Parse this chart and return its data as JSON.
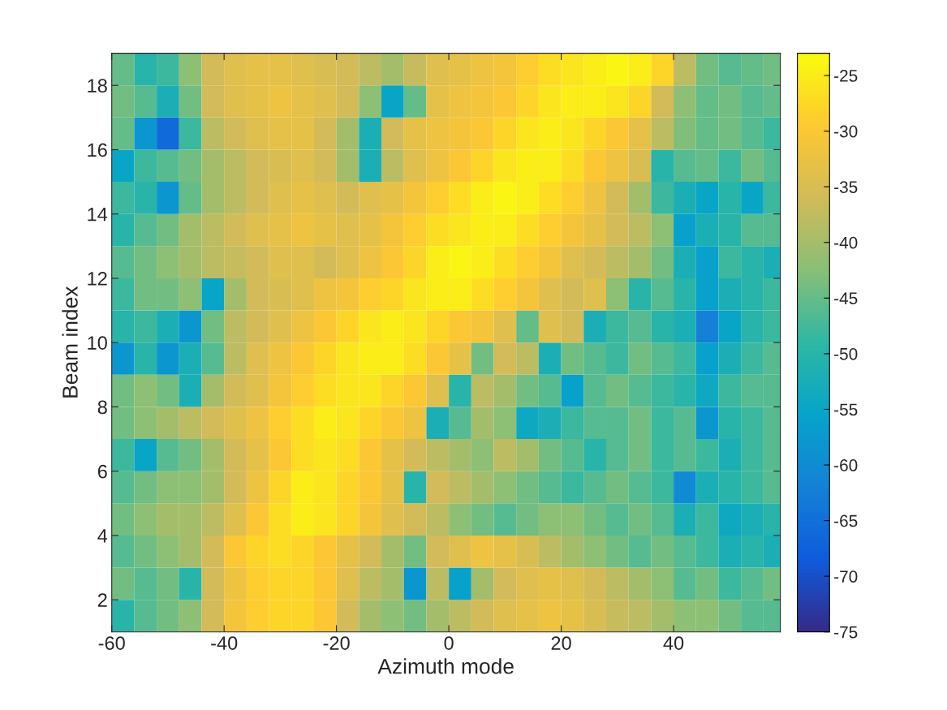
{
  "chart_data": {
    "type": "heatmap",
    "xlabel": "Azimuth mode",
    "ylabel": "Beam index",
    "x": [
      -58,
      -54,
      -50,
      -46,
      -42,
      -38,
      -34,
      -30,
      -26,
      -22,
      -18,
      -14,
      -10,
      -6,
      -2,
      2,
      6,
      10,
      14,
      18,
      22,
      26,
      30,
      34,
      38,
      42,
      46,
      50,
      54,
      58
    ],
    "xlim": [
      -60,
      59
    ],
    "xticks": [
      -60,
      -40,
      -20,
      0,
      20,
      40
    ],
    "ylim": [
      1,
      19
    ],
    "yticks": [
      2,
      4,
      6,
      8,
      10,
      12,
      14,
      16,
      18
    ],
    "clim": [
      -75,
      -23
    ],
    "cticks": [
      -75,
      -70,
      -65,
      -60,
      -55,
      -50,
      -45,
      -40,
      -35,
      -30,
      -25
    ],
    "cells": [
      [
        -45,
        -50,
        -48,
        -42,
        -36,
        -34,
        -33,
        -33,
        -34,
        -35,
        -36,
        -38,
        -40,
        -37,
        -34,
        -33,
        -32,
        -31,
        -29,
        -27,
        -26,
        -25,
        -24,
        -25,
        -28,
        -38,
        -44,
        -46,
        -45,
        -44
      ],
      [
        -44,
        -46,
        -52,
        -44,
        -36,
        -34,
        -33,
        -32,
        -33,
        -34,
        -36,
        -42,
        -55,
        -45,
        -33,
        -32,
        -31,
        -30,
        -28,
        -26,
        -25,
        -25,
        -26,
        -28,
        -36,
        -42,
        -45,
        -44,
        -46,
        -45
      ],
      [
        -45,
        -58,
        -66,
        -48,
        -38,
        -36,
        -34,
        -33,
        -33,
        -36,
        -40,
        -52,
        -36,
        -33,
        -32,
        -31,
        -30,
        -28,
        -26,
        -25,
        -26,
        -28,
        -30,
        -33,
        -38,
        -43,
        -45,
        -44,
        -46,
        -48
      ],
      [
        -55,
        -48,
        -46,
        -44,
        -40,
        -38,
        -36,
        -35,
        -34,
        -36,
        -40,
        -52,
        -38,
        -34,
        -32,
        -30,
        -28,
        -26,
        -25,
        -25,
        -27,
        -30,
        -32,
        -35,
        -50,
        -46,
        -45,
        -48,
        -44,
        -46
      ],
      [
        -48,
        -50,
        -58,
        -45,
        -40,
        -38,
        -36,
        -34,
        -33,
        -34,
        -36,
        -34,
        -33,
        -31,
        -29,
        -27,
        -25,
        -24,
        -25,
        -27,
        -29,
        -32,
        -36,
        -40,
        -48,
        -52,
        -55,
        -50,
        -55,
        -48
      ],
      [
        -50,
        -46,
        -44,
        -40,
        -38,
        -36,
        -34,
        -33,
        -32,
        -33,
        -34,
        -33,
        -31,
        -29,
        -27,
        -26,
        -25,
        -25,
        -27,
        -29,
        -31,
        -33,
        -36,
        -38,
        -42,
        -56,
        -52,
        -50,
        -46,
        -46
      ],
      [
        -46,
        -44,
        -42,
        -40,
        -38,
        -37,
        -36,
        -34,
        -34,
        -36,
        -34,
        -32,
        -30,
        -28,
        -25,
        -24,
        -25,
        -27,
        -29,
        -31,
        -34,
        -36,
        -38,
        -40,
        -44,
        -52,
        -56,
        -48,
        -50,
        -52
      ],
      [
        -48,
        -44,
        -44,
        -42,
        -55,
        -40,
        -36,
        -35,
        -34,
        -32,
        -31,
        -29,
        -28,
        -26,
        -25,
        -25,
        -27,
        -29,
        -31,
        -34,
        -36,
        -34,
        -42,
        -50,
        -46,
        -50,
        -56,
        -52,
        -50,
        -48
      ],
      [
        -50,
        -48,
        -52,
        -58,
        -44,
        -38,
        -36,
        -34,
        -32,
        -30,
        -28,
        -26,
        -25,
        -26,
        -28,
        -30,
        -31,
        -34,
        -45,
        -34,
        -36,
        -52,
        -48,
        -46,
        -50,
        -52,
        -62,
        -55,
        -50,
        -48
      ],
      [
        -58,
        -50,
        -58,
        -52,
        -46,
        -38,
        -34,
        -32,
        -30,
        -28,
        -26,
        -25,
        -25,
        -27,
        -30,
        -33,
        -44,
        -36,
        -38,
        -52,
        -44,
        -46,
        -48,
        -44,
        -46,
        -48,
        -56,
        -52,
        -48,
        -46
      ],
      [
        -44,
        -42,
        -44,
        -52,
        -40,
        -36,
        -34,
        -31,
        -29,
        -27,
        -26,
        -26,
        -28,
        -30,
        -34,
        -50,
        -38,
        -40,
        -44,
        -46,
        -56,
        -46,
        -44,
        -46,
        -48,
        -50,
        -54,
        -48,
        -46,
        -46
      ],
      [
        -44,
        -42,
        -40,
        -38,
        -36,
        -34,
        -32,
        -29,
        -27,
        -25,
        -26,
        -28,
        -30,
        -32,
        -52,
        -46,
        -40,
        -42,
        -54,
        -52,
        -48,
        -46,
        -46,
        -44,
        -48,
        -46,
        -58,
        -50,
        -48,
        -46
      ],
      [
        -48,
        -55,
        -46,
        -44,
        -40,
        -36,
        -33,
        -30,
        -27,
        -26,
        -27,
        -30,
        -33,
        -36,
        -38,
        -40,
        -42,
        -38,
        -40,
        -44,
        -46,
        -50,
        -46,
        -44,
        -48,
        -46,
        -48,
        -52,
        -48,
        -46
      ],
      [
        -46,
        -44,
        -42,
        -42,
        -40,
        -36,
        -32,
        -28,
        -25,
        -26,
        -28,
        -30,
        -33,
        -50,
        -36,
        -38,
        -40,
        -42,
        -44,
        -46,
        -48,
        -46,
        -44,
        -46,
        -48,
        -60,
        -52,
        -50,
        -48,
        -46
      ],
      [
        -44,
        -42,
        -40,
        -40,
        -38,
        -34,
        -30,
        -27,
        -25,
        -26,
        -28,
        -31,
        -34,
        -36,
        -38,
        -42,
        -44,
        -46,
        -44,
        -42,
        -42,
        -44,
        -46,
        -44,
        -46,
        -52,
        -48,
        -54,
        -52,
        -50
      ],
      [
        -46,
        -44,
        -42,
        -40,
        -36,
        -30,
        -28,
        -27,
        -28,
        -30,
        -33,
        -36,
        -40,
        -44,
        -36,
        -34,
        -32,
        -33,
        -35,
        -38,
        -40,
        -42,
        -44,
        -46,
        -44,
        -46,
        -48,
        -52,
        -50,
        -52
      ],
      [
        -44,
        -46,
        -44,
        -50,
        -36,
        -32,
        -29,
        -28,
        -28,
        -30,
        -34,
        -38,
        -40,
        -58,
        -38,
        -56,
        -40,
        -36,
        -34,
        -33,
        -34,
        -36,
        -38,
        -40,
        -42,
        -46,
        -44,
        -48,
        -46,
        -44
      ],
      [
        -50,
        -46,
        -44,
        -42,
        -36,
        -31,
        -29,
        -28,
        -28,
        -30,
        -36,
        -40,
        -42,
        -44,
        -40,
        -38,
        -36,
        -34,
        -33,
        -32,
        -33,
        -35,
        -37,
        -38,
        -40,
        -42,
        -42,
        -44,
        -46,
        -46
      ]
    ]
  }
}
